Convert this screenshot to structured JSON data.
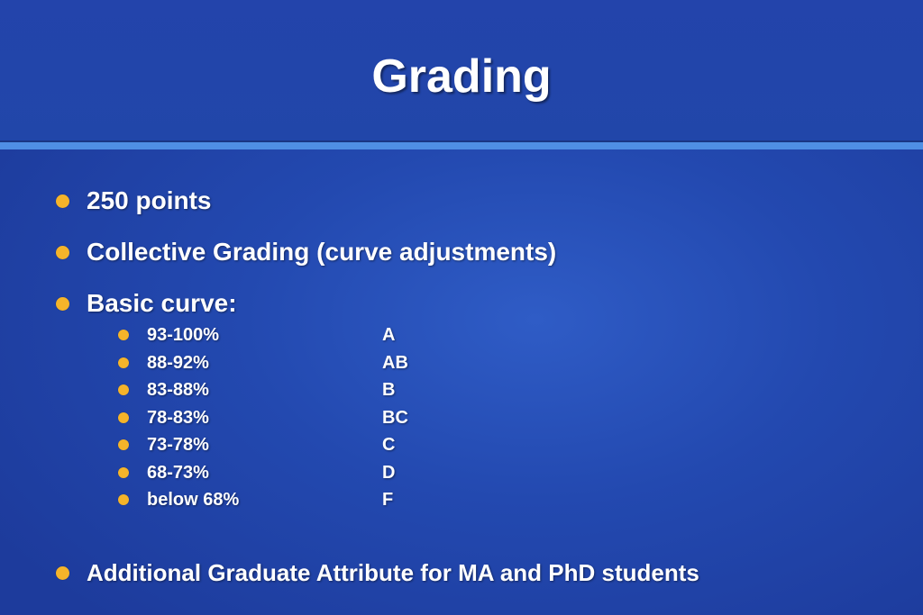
{
  "slide": {
    "title": "Grading",
    "bullets": [
      "250 points",
      "Collective Grading (curve adjustments)",
      "Basic curve:"
    ],
    "curve": [
      {
        "range": "93-100%",
        "grade": "A"
      },
      {
        "range": "88-92%",
        "grade": "AB"
      },
      {
        "range": "83-88%",
        "grade": "B"
      },
      {
        "range": "78-83%",
        "grade": "BC"
      },
      {
        "range": "73-78%",
        "grade": "C"
      },
      {
        "range": "68-73%",
        "grade": "D"
      },
      {
        "range": "below 68%",
        "grade": "F"
      }
    ],
    "final_bullet": "Additional Graduate Attribute for MA and PhD students"
  }
}
